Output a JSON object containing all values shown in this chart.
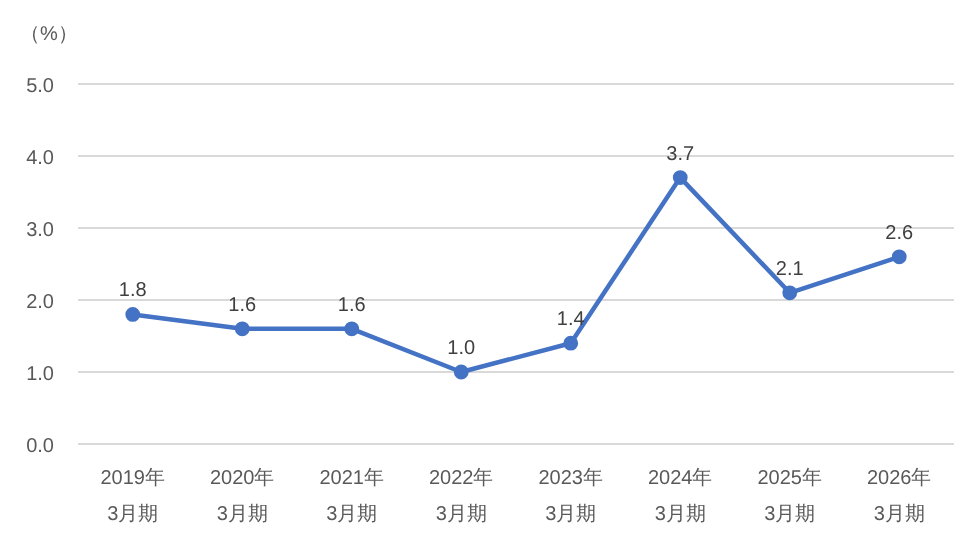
{
  "chart_data": {
    "type": "line",
    "ylabel": "（%）",
    "categories": [
      "2019年\n3月期",
      "2020年\n3月期",
      "2021年\n3月期",
      "2022年\n3月期",
      "2023年\n3月期",
      "2024年\n3月期",
      "2025年\n3月期",
      "2026年\n3月期"
    ],
    "series": [
      {
        "color": "#4472c4",
        "values": [
          1.8,
          1.6,
          1.6,
          1.0,
          1.4,
          3.7,
          2.1,
          2.6
        ],
        "value_labels": [
          "1.8",
          "1.6",
          "1.6",
          "1.0",
          "1.4",
          "3.7",
          "2.1",
          "2.6"
        ]
      }
    ],
    "ylim": [
      0,
      5
    ],
    "yticks": [
      {
        "value": 0,
        "label": "0.0"
      },
      {
        "value": 1,
        "label": "1.0"
      },
      {
        "value": 2,
        "label": "2.0"
      },
      {
        "value": 3,
        "label": "3.0"
      },
      {
        "value": 4,
        "label": "4.0"
      },
      {
        "value": 5,
        "label": "5.0"
      }
    ],
    "grid": "y",
    "marker": "circle",
    "line_style": "solid"
  }
}
